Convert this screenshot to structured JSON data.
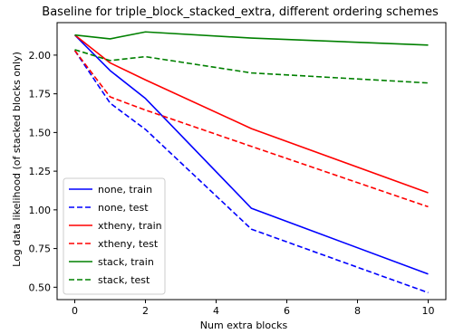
{
  "chart_data": {
    "type": "line",
    "title": "Baseline for triple_block_stacked_extra, different ordering schemes",
    "xlabel": "Num extra blocks",
    "ylabel": "Log data likelihood (of stacked blocks only)",
    "xlim": [
      -0.5,
      10.5
    ],
    "ylim": [
      0.42,
      2.21
    ],
    "xticks": [
      0,
      2,
      4,
      6,
      8,
      10
    ],
    "xtick_labels": [
      "0",
      "2",
      "4",
      "6",
      "8",
      "10"
    ],
    "yticks": [
      0.5,
      0.75,
      1.0,
      1.25,
      1.5,
      1.75,
      2.0
    ],
    "ytick_labels": [
      "0.50",
      "0.75",
      "1.00",
      "1.25",
      "1.50",
      "1.75",
      "2.00"
    ],
    "grid": false,
    "legend_position": "lower-left",
    "x": [
      0,
      1,
      2,
      5,
      10
    ],
    "series": [
      {
        "name": "none, train",
        "color": "#0000ff",
        "dash": "solid",
        "values": [
          2.13,
          1.9,
          1.72,
          1.01,
          0.585
        ]
      },
      {
        "name": "none, test",
        "color": "#0000ff",
        "dash": "dashed",
        "values": [
          2.03,
          1.69,
          1.52,
          0.875,
          0.465
        ]
      },
      {
        "name": "xtheny, train",
        "color": "#ff0000",
        "dash": "solid",
        "values": [
          2.13,
          1.95,
          1.84,
          1.525,
          1.11
        ]
      },
      {
        "name": "xtheny, test",
        "color": "#ff0000",
        "dash": "dashed",
        "values": [
          2.03,
          1.73,
          1.645,
          1.41,
          1.02
        ]
      },
      {
        "name": "stack, train",
        "color": "#008000",
        "dash": "solid",
        "values": [
          2.13,
          2.105,
          2.15,
          2.11,
          2.065
        ]
      },
      {
        "name": "stack, test",
        "color": "#008000",
        "dash": "dashed",
        "values": [
          2.035,
          1.965,
          1.99,
          1.885,
          1.82
        ]
      }
    ]
  }
}
